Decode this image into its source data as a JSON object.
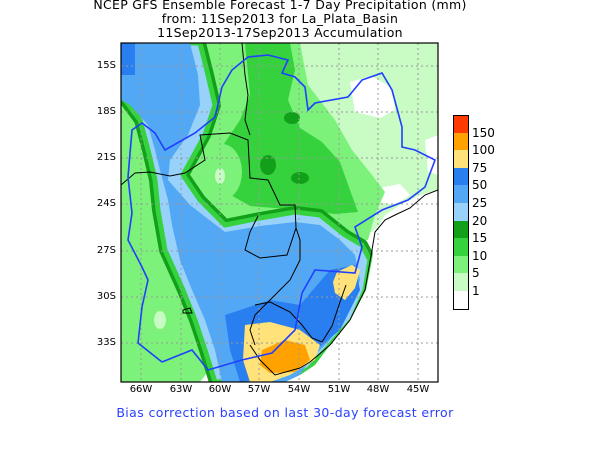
{
  "title": {
    "line1": "NCEP GFS Ensemble Forecast 1-7 Day Precipitation (mm)",
    "line2": "from: 11Sep2013   for La_Plata_Basin",
    "line3": "11Sep2013-17Sep2013 Accumulation"
  },
  "lat_ticks": [
    "15S",
    "18S",
    "21S",
    "24S",
    "27S",
    "30S",
    "33S"
  ],
  "lon_ticks": [
    "66W",
    "63W",
    "60W",
    "57W",
    "54W",
    "51W",
    "48W",
    "45W"
  ],
  "legend": {
    "labels": [
      "150",
      "100",
      "75",
      "50",
      "25",
      "20",
      "15",
      "10",
      "5",
      "1"
    ],
    "colors": [
      "#ff3a00",
      "#ffa200",
      "#ffe37a",
      "#2a7ff0",
      "#52a8f5",
      "#98d2fb",
      "#12a01a",
      "#36d23e",
      "#7cf27a",
      "#c8fcc4",
      "#ffffff"
    ]
  },
  "footer": "Bias correction based on last 30-day forecast error"
}
